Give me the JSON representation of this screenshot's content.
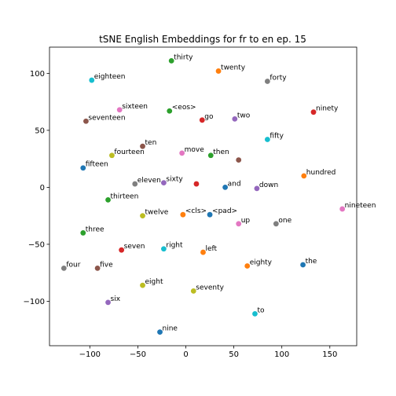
{
  "chart_data": {
    "type": "scatter",
    "title": "tSNE English Embeddings for fr to en ep. 15",
    "xlabel": "",
    "ylabel": "",
    "xlim": [
      -142,
      178
    ],
    "ylim": [
      -139,
      123
    ],
    "x_ticks": [
      -100,
      -50,
      0,
      50,
      100,
      150
    ],
    "y_ticks": [
      100,
      50,
      0,
      -50,
      -100
    ],
    "x_tick_labels": [
      "−100",
      "−50",
      "0",
      "50",
      "100",
      "150"
    ],
    "y_tick_labels": [
      "100",
      "50",
      "0",
      "−50",
      "−100"
    ],
    "grid": false,
    "points": [
      {
        "label": "thirty",
        "x": -15,
        "y": 111,
        "color": "#2ca02c"
      },
      {
        "label": "twenty",
        "x": 34,
        "y": 102,
        "color": "#ff7f0e"
      },
      {
        "label": "forty",
        "x": 85,
        "y": 93,
        "color": "#7f7f7f"
      },
      {
        "label": "eighteen",
        "x": -98,
        "y": 94,
        "color": "#17becf"
      },
      {
        "label": "sixteen",
        "x": -69,
        "y": 68,
        "color": "#e377c2"
      },
      {
        "label": "<eos>",
        "x": -17,
        "y": 67,
        "color": "#2ca02c"
      },
      {
        "label": "ninety",
        "x": 133,
        "y": 66,
        "color": "#d62728"
      },
      {
        "label": "seventeen",
        "x": -104,
        "y": 58,
        "color": "#8c564b"
      },
      {
        "label": "go",
        "x": 17,
        "y": 59,
        "color": "#d62728"
      },
      {
        "label": "two",
        "x": 51,
        "y": 60,
        "color": "#9467bd"
      },
      {
        "label": "fifty",
        "x": 85,
        "y": 42,
        "color": "#17becf"
      },
      {
        "label": "ten",
        "x": -45,
        "y": 36,
        "color": "#8c564b"
      },
      {
        "label": "fourteen",
        "x": -77,
        "y": 28,
        "color": "#bcbd22"
      },
      {
        "label": "move",
        "x": -4,
        "y": 30,
        "color": "#e377c2"
      },
      {
        "label": "then",
        "x": 26,
        "y": 28,
        "color": "#2ca02c"
      },
      {
        "label": "",
        "x": 55,
        "y": 24,
        "color": "#8c564b"
      },
      {
        "label": "fifteen",
        "x": -107,
        "y": 17,
        "color": "#1f77b4"
      },
      {
        "label": "hundred",
        "x": 123,
        "y": 10,
        "color": "#ff7f0e"
      },
      {
        "label": "eleven",
        "x": -53,
        "y": 3,
        "color": "#7f7f7f"
      },
      {
        "label": "sixty",
        "x": -23,
        "y": 4,
        "color": "#9467bd"
      },
      {
        "label": "",
        "x": 11,
        "y": 3,
        "color": "#d62728"
      },
      {
        "label": "and",
        "x": 41,
        "y": 0,
        "color": "#1f77b4"
      },
      {
        "label": "down",
        "x": 74,
        "y": -1,
        "color": "#9467bd"
      },
      {
        "label": "thirteen",
        "x": -81,
        "y": -11,
        "color": "#2ca02c"
      },
      {
        "label": "nineteen",
        "x": 163,
        "y": -19,
        "color": "#e377c2"
      },
      {
        "label": "twelve",
        "x": -45,
        "y": -25,
        "color": "#bcbd22"
      },
      {
        "label": "<cls>",
        "x": -3,
        "y": -24,
        "color": "#ff7f0e"
      },
      {
        "label": "<pad>",
        "x": 25,
        "y": -24,
        "color": "#1f77b4"
      },
      {
        "label": "up",
        "x": 55,
        "y": -32,
        "color": "#e377c2"
      },
      {
        "label": "one",
        "x": 94,
        "y": -32,
        "color": "#7f7f7f"
      },
      {
        "label": "three",
        "x": -107,
        "y": -40,
        "color": "#2ca02c"
      },
      {
        "label": "seven",
        "x": -67,
        "y": -55,
        "color": "#d62728"
      },
      {
        "label": "right",
        "x": -23,
        "y": -54,
        "color": "#17becf"
      },
      {
        "label": "left",
        "x": 18,
        "y": -57,
        "color": "#ff7f0e"
      },
      {
        "label": "eighty",
        "x": 64,
        "y": -69,
        "color": "#ff7f0e"
      },
      {
        "label": "the",
        "x": 122,
        "y": -68,
        "color": "#1f77b4"
      },
      {
        "label": "four",
        "x": -127,
        "y": -71,
        "color": "#7f7f7f"
      },
      {
        "label": "five",
        "x": -92,
        "y": -71,
        "color": "#8c564b"
      },
      {
        "label": "eight",
        "x": -45,
        "y": -86,
        "color": "#bcbd22"
      },
      {
        "label": "seventy",
        "x": 8,
        "y": -91,
        "color": "#bcbd22"
      },
      {
        "label": "six",
        "x": -81,
        "y": -101,
        "color": "#9467bd"
      },
      {
        "label": "to",
        "x": 72,
        "y": -111,
        "color": "#17becf"
      },
      {
        "label": "nine",
        "x": -27,
        "y": -127,
        "color": "#1f77b4"
      }
    ]
  }
}
